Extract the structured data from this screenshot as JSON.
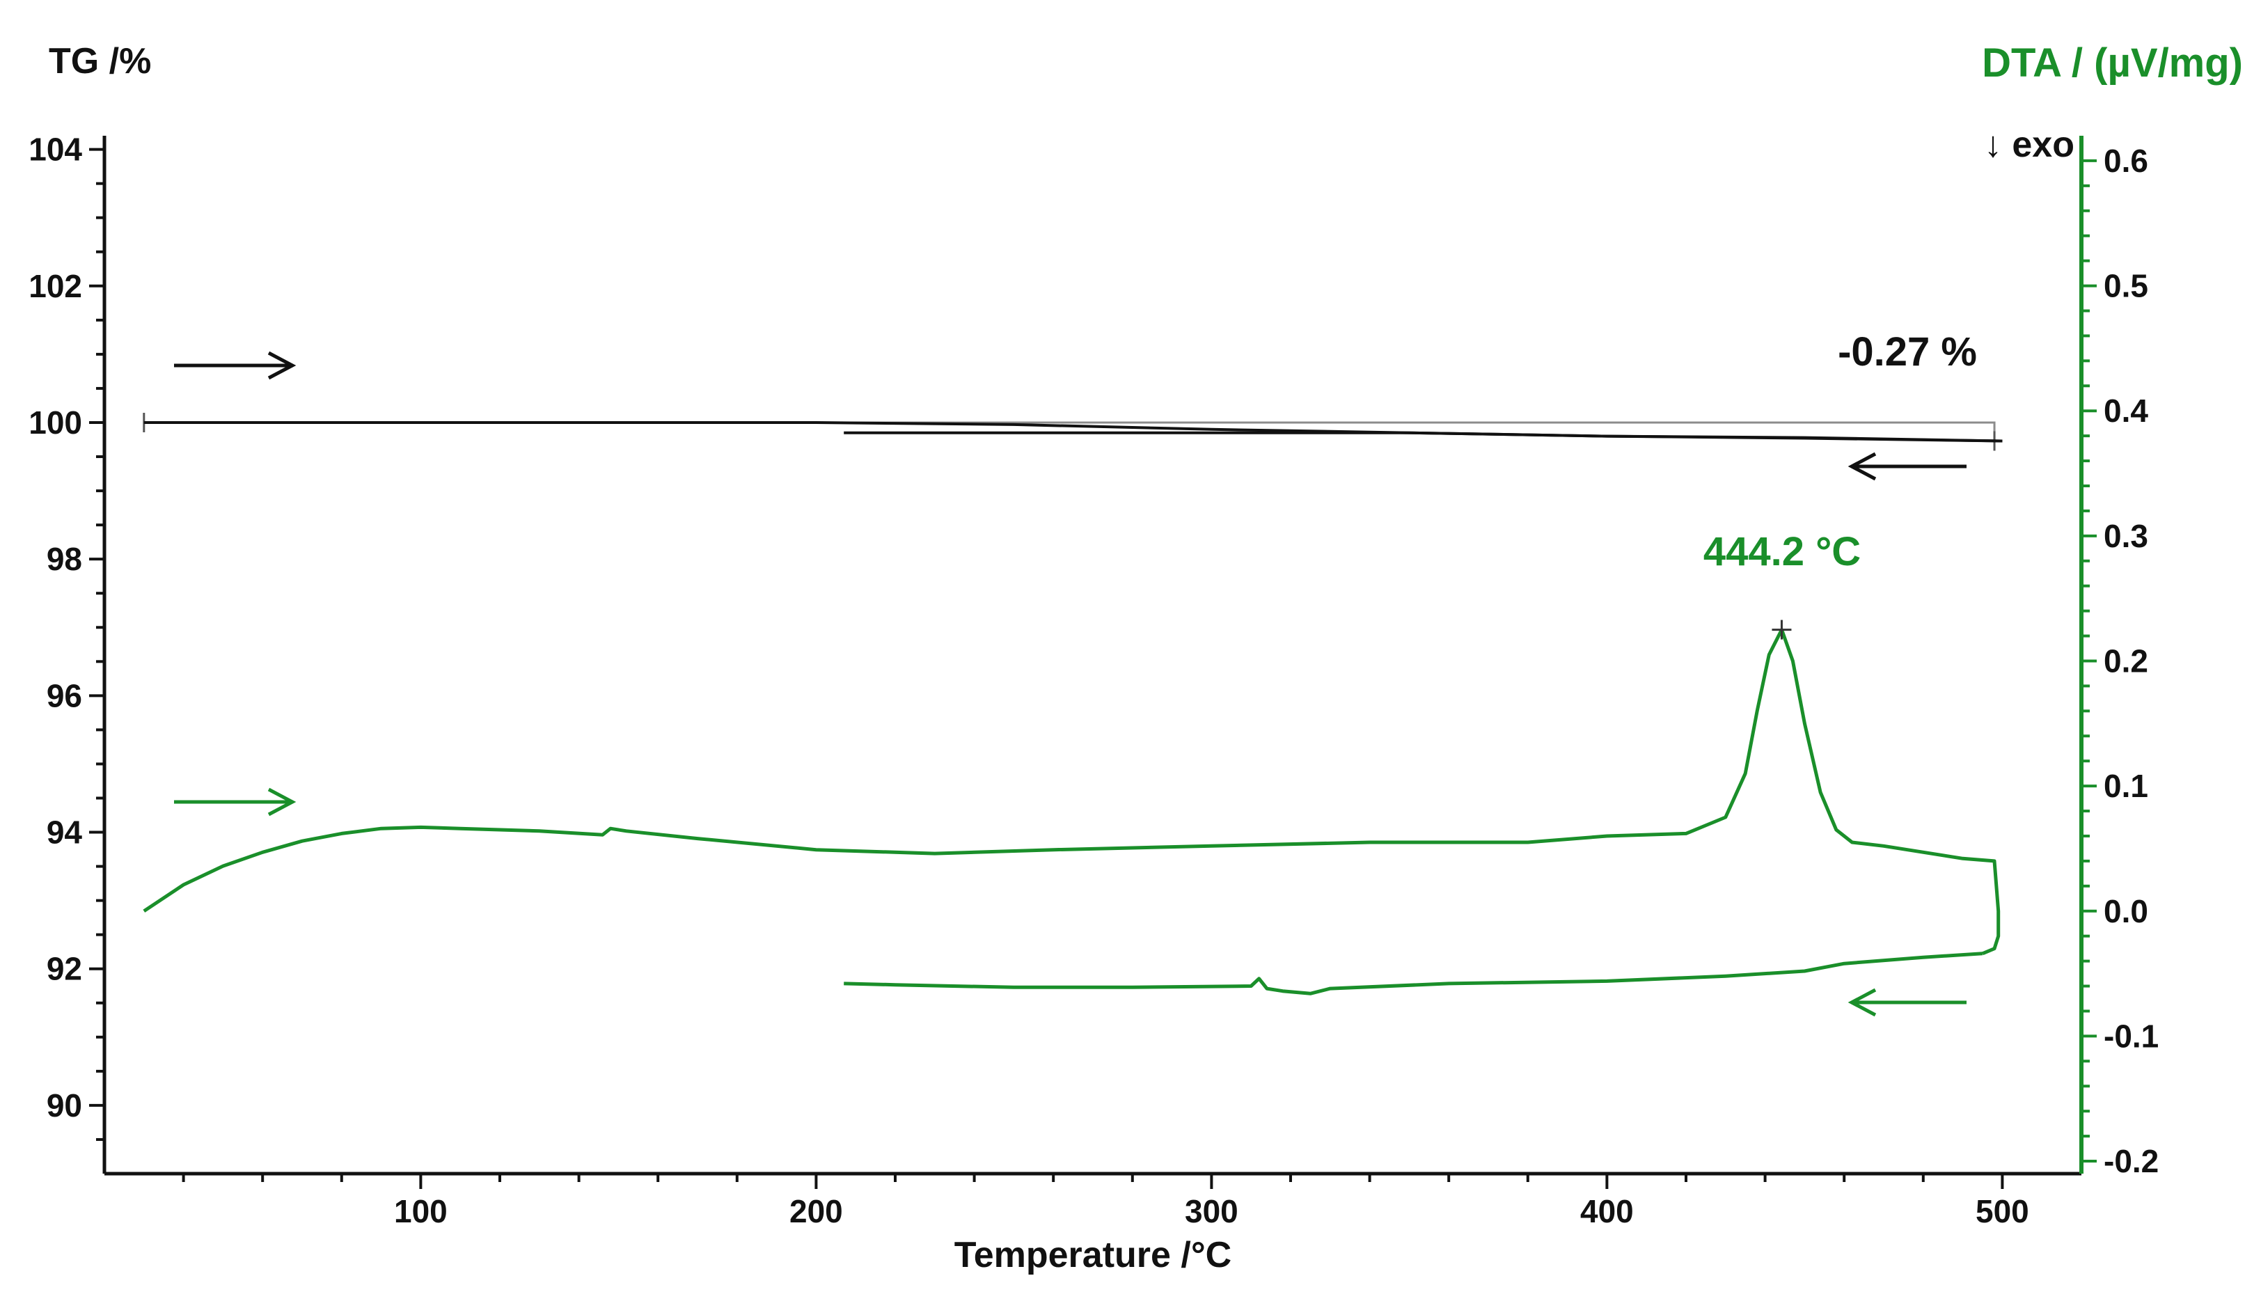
{
  "chart_data": {
    "type": "line",
    "title": "",
    "xlabel": "Temperature /°C",
    "ylabel_left": "TG /%",
    "ylabel_right": "DTA / (µV/mg)",
    "exo_label": "↓ exo",
    "xlim": [
      20,
      520
    ],
    "ylim_left": [
      89,
      104.2
    ],
    "ylim_right": [
      -0.21,
      0.62
    ],
    "x_ticks": [
      100,
      200,
      300,
      400,
      500
    ],
    "y_left_ticks": [
      90,
      92,
      94,
      96,
      98,
      100,
      102,
      104
    ],
    "y_right_ticks": [
      -0.2,
      -0.1,
      0.0,
      0.1,
      0.2,
      0.3,
      0.4,
      0.5,
      0.6
    ],
    "colors": {
      "tg": "#111111",
      "dta": "#1a8f2a",
      "baseline": "#8c8c8c"
    },
    "annotations": {
      "mass_change": "-0.27 %",
      "peak_label": "444.2 °C"
    },
    "series": [
      {
        "axis": "left",
        "segment": "TG heating",
        "x": [
          30,
          80,
          150,
          200,
          250,
          300,
          350,
          400,
          450,
          500
        ],
        "y": [
          100.0,
          100.0,
          100.0,
          100.0,
          99.97,
          99.9,
          99.85,
          99.8,
          99.77,
          99.73
        ]
      },
      {
        "axis": "left",
        "segment": "TG cooling",
        "x": [
          500,
          450,
          400,
          350,
          300,
          250,
          210,
          207
        ],
        "y": [
          99.73,
          99.78,
          99.8,
          99.85,
          99.85,
          99.85,
          99.85,
          99.85
        ]
      },
      {
        "axis": "right",
        "segment": "DTA heating",
        "x": [
          30,
          40,
          50,
          60,
          70,
          80,
          90,
          100,
          110,
          130,
          146,
          148,
          152,
          170,
          200,
          230,
          260,
          300,
          340,
          380,
          400,
          420,
          430,
          435,
          438,
          441,
          444.2,
          447,
          450,
          454,
          458,
          462,
          470,
          490,
          498,
          499,
          499,
          498,
          495
        ],
        "y": [
          -0.0,
          0.021,
          0.036,
          0.047,
          0.056,
          0.062,
          0.066,
          0.067,
          0.066,
          0.064,
          0.061,
          0.066,
          0.064,
          0.058,
          0.049,
          0.046,
          0.049,
          0.052,
          0.055,
          0.055,
          0.06,
          0.062,
          0.075,
          0.11,
          0.16,
          0.205,
          0.225,
          0.2,
          0.15,
          0.095,
          0.065,
          0.055,
          0.052,
          0.042,
          0.04,
          0.0,
          -0.02,
          -0.03,
          -0.034
        ]
      },
      {
        "axis": "right",
        "segment": "DTA cooling",
        "x": [
          495,
          480,
          460,
          450,
          430,
          400,
          360,
          330,
          325,
          318,
          314,
          312,
          310,
          280,
          250,
          220,
          207
        ],
        "y": [
          -0.034,
          -0.037,
          -0.042,
          -0.048,
          -0.052,
          -0.056,
          -0.058,
          -0.062,
          -0.066,
          -0.064,
          -0.062,
          -0.054,
          -0.06,
          -0.061,
          -0.061,
          -0.059,
          -0.058
        ]
      }
    ]
  }
}
